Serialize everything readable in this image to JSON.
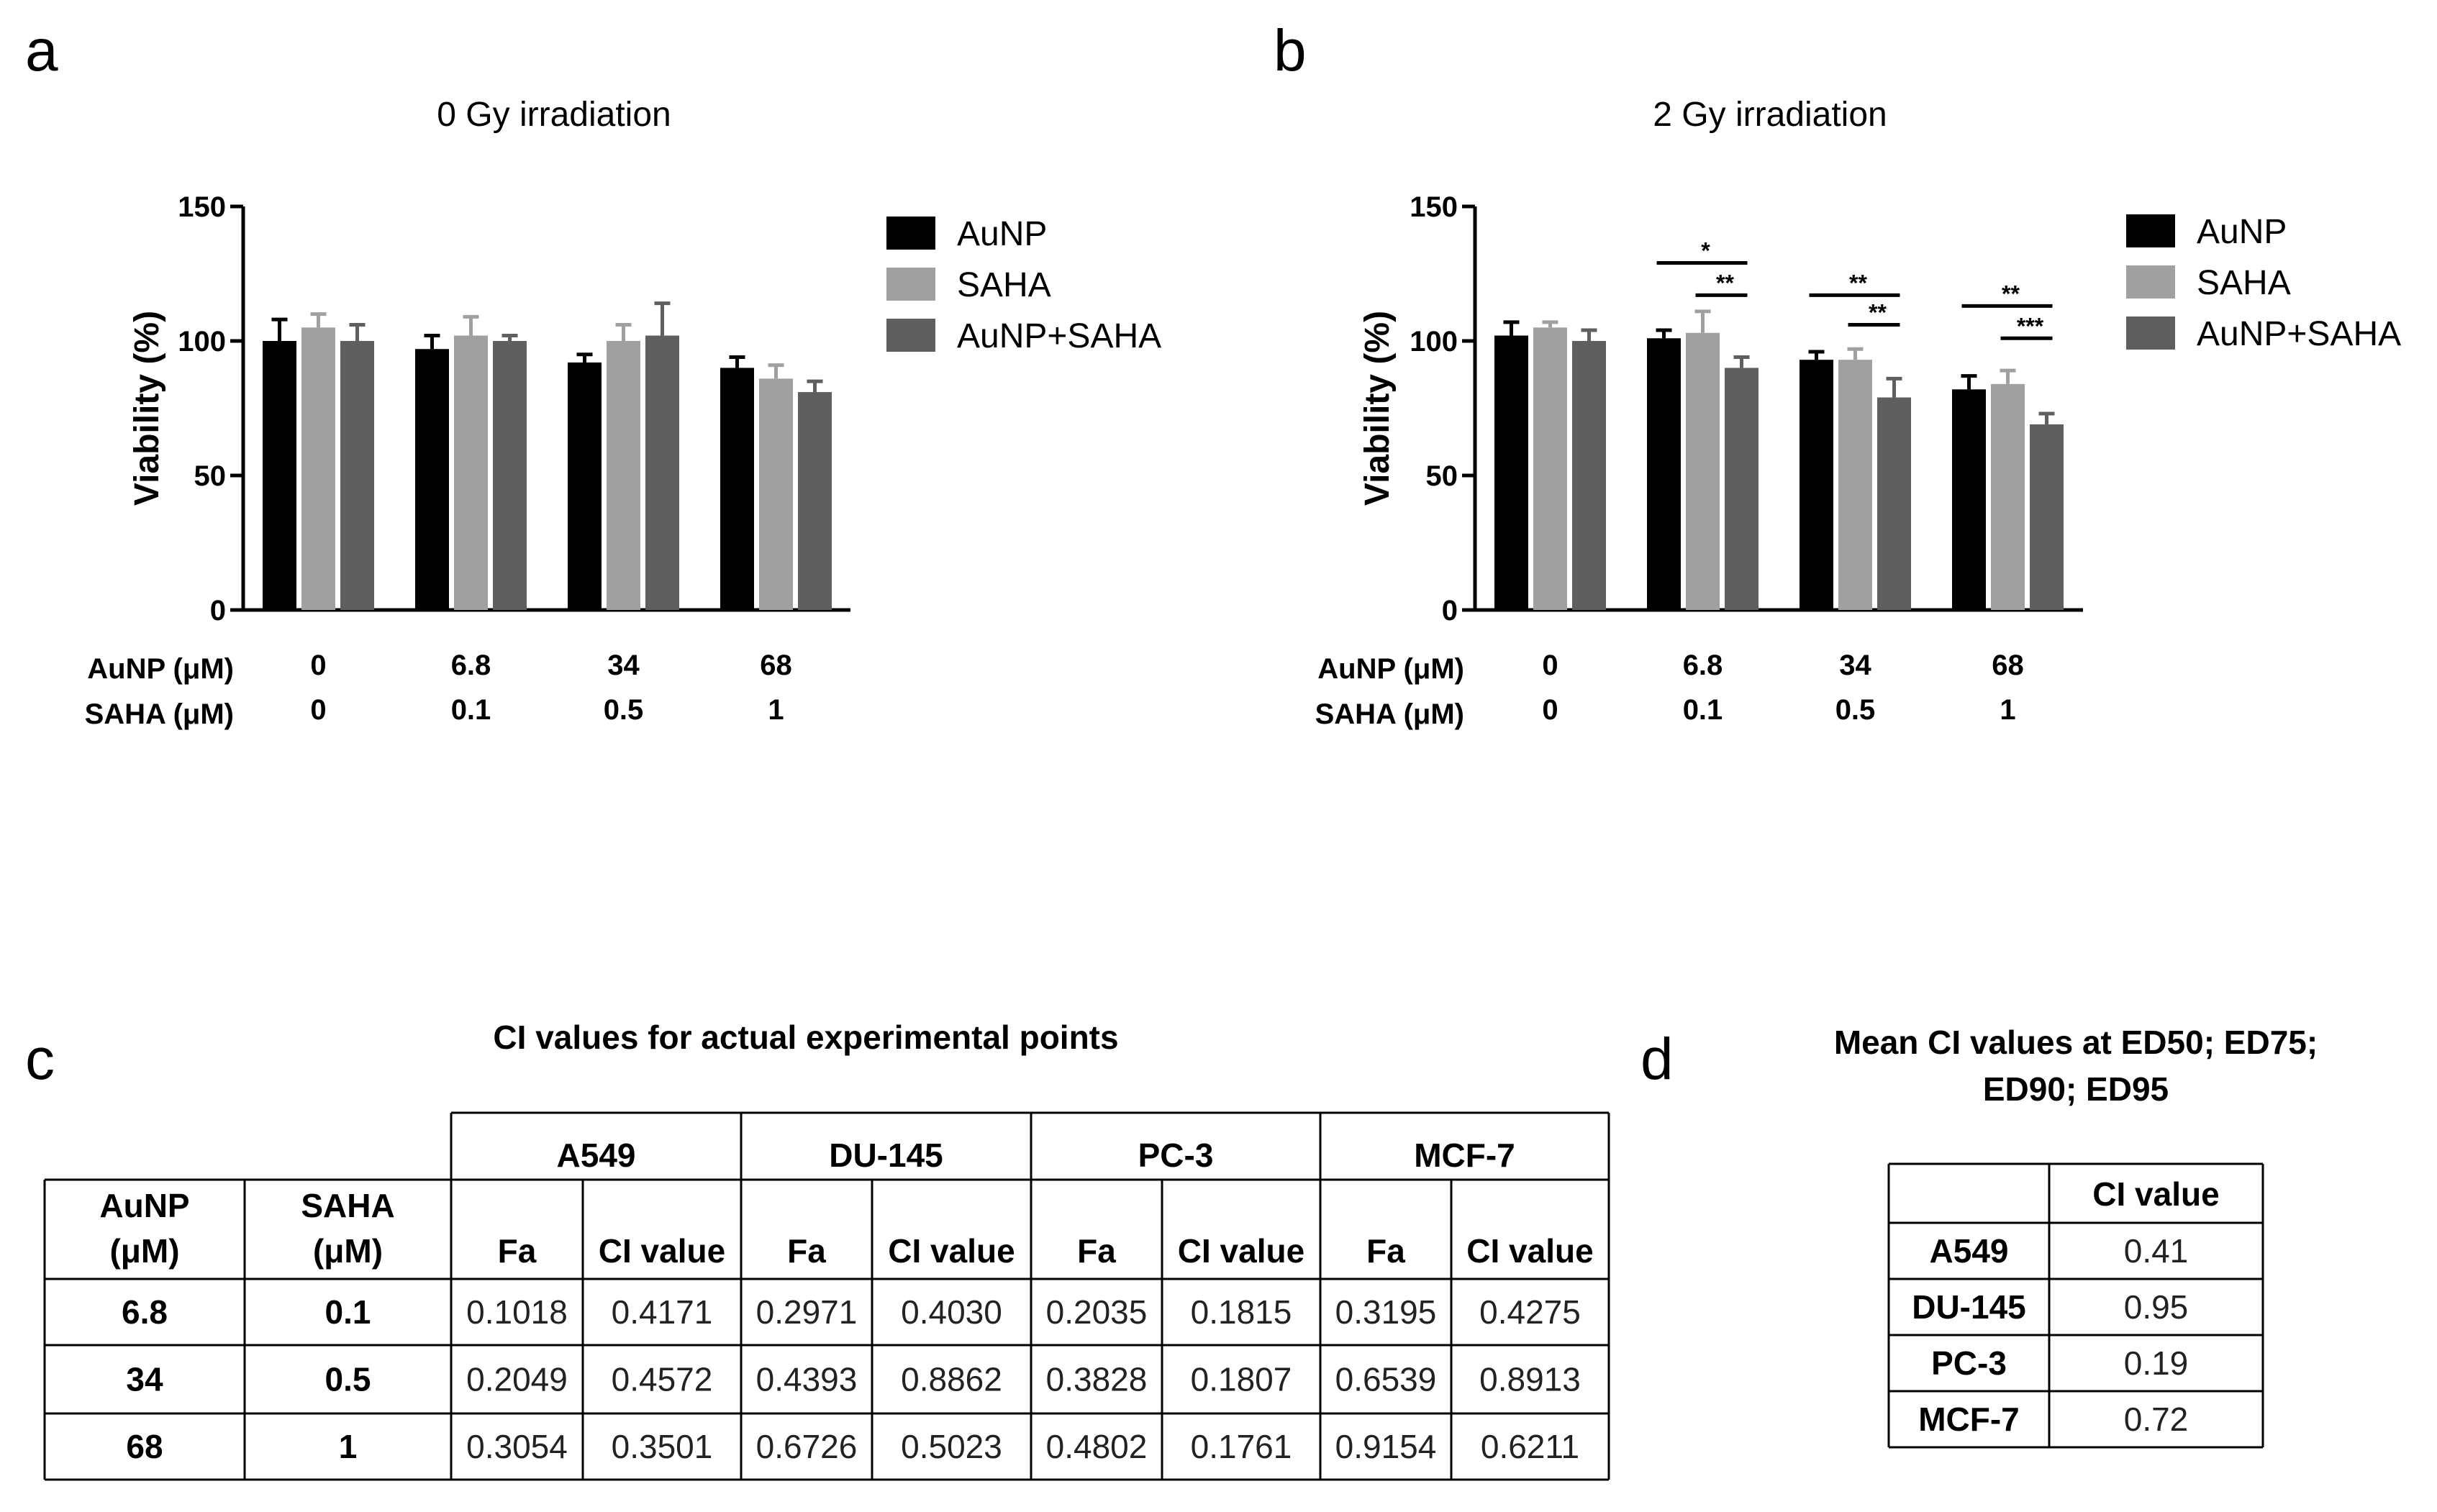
{
  "panel_letters": {
    "a": "a",
    "b": "b",
    "c": "c",
    "d": "d"
  },
  "colors": {
    "AuNP": "#000000",
    "SAHA": "#a0a0a0",
    "AuNP+SAHA": "#5f5f5f"
  },
  "chart_data": [
    {
      "panel": "a",
      "type": "bar",
      "title": "0 Gy irradiation",
      "ylabel": "Viability (%)",
      "ylim": [
        0,
        150
      ],
      "yticks": [
        "150",
        "100",
        "50",
        "0"
      ],
      "row_labels": [
        "AuNP (μM)",
        "SAHA (μM)"
      ],
      "categories_aunp": [
        "0",
        "6.8",
        "34",
        "68"
      ],
      "categories_saha": [
        "0",
        "0.1",
        "0.5",
        "1"
      ],
      "series": [
        {
          "name": "AuNP",
          "values": [
            100,
            97,
            92,
            90
          ],
          "errors": [
            8,
            5,
            3,
            4
          ]
        },
        {
          "name": "SAHA",
          "values": [
            105,
            102,
            100,
            86
          ],
          "errors": [
            5,
            7,
            6,
            5
          ]
        },
        {
          "name": "AuNP+SAHA",
          "values": [
            100,
            100,
            102,
            81
          ],
          "errors": [
            6,
            2,
            12,
            4
          ]
        }
      ],
      "significance": []
    },
    {
      "panel": "b",
      "type": "bar",
      "title": "2 Gy irradiation",
      "ylabel": "Viability (%)",
      "ylim": [
        0,
        150
      ],
      "yticks": [
        "150",
        "100",
        "50",
        "0"
      ],
      "row_labels": [
        "AuNP (μM)",
        "SAHA (μM)"
      ],
      "categories_aunp": [
        "0",
        "6.8",
        "34",
        "68"
      ],
      "categories_saha": [
        "0",
        "0.1",
        "0.5",
        "1"
      ],
      "series": [
        {
          "name": "AuNP",
          "values": [
            102,
            101,
            93,
            82
          ],
          "errors": [
            5,
            3,
            3,
            5
          ]
        },
        {
          "name": "SAHA",
          "values": [
            105,
            103,
            93,
            84
          ],
          "errors": [
            2,
            8,
            4,
            5
          ]
        },
        {
          "name": "AuNP+SAHA",
          "values": [
            100,
            90,
            79,
            69
          ],
          "errors": [
            4,
            4,
            7,
            4
          ]
        }
      ],
      "significance": [
        {
          "group": 1,
          "from": 0,
          "to": 2,
          "label": "*",
          "level": 129
        },
        {
          "group": 1,
          "from": 1,
          "to": 2,
          "label": "**",
          "level": 117
        },
        {
          "group": 2,
          "from": 0,
          "to": 2,
          "label": "**",
          "level": 117
        },
        {
          "group": 2,
          "from": 1,
          "to": 2,
          "label": "**",
          "level": 106
        },
        {
          "group": 3,
          "from": 0,
          "to": 2,
          "label": "**",
          "level": 113
        },
        {
          "group": 3,
          "from": 1,
          "to": 2,
          "label": "***",
          "level": 101
        }
      ]
    }
  ],
  "legend": [
    "AuNP",
    "SAHA",
    "AuNP+SAHA"
  ],
  "table_c": {
    "title": "CI values for actual experimental points",
    "cell_lines": [
      "A549",
      "DU-145",
      "PC-3",
      "MCF-7"
    ],
    "col_aunp": [
      "AuNP",
      "(μM)"
    ],
    "col_saha": [
      "SAHA",
      "(μM)"
    ],
    "sub_fa": "Fa",
    "sub_ci": "CI value",
    "rows": [
      {
        "aunp": "6.8",
        "saha": "0.1",
        "vals": [
          "0.1018",
          "0.4171",
          "0.2971",
          "0.4030",
          "0.2035",
          "0.1815",
          "0.3195",
          "0.4275"
        ]
      },
      {
        "aunp": "34",
        "saha": "0.5",
        "vals": [
          "0.2049",
          "0.4572",
          "0.4393",
          "0.8862",
          "0.3828",
          "0.1807",
          "0.6539",
          "0.8913"
        ]
      },
      {
        "aunp": "68",
        "saha": "1",
        "vals": [
          "0.3054",
          "0.3501",
          "0.6726",
          "0.5023",
          "0.4802",
          "0.1761",
          "0.9154",
          "0.6211"
        ]
      }
    ]
  },
  "table_d": {
    "title_line1": "Mean CI values at ED50; ED75;",
    "title_line2": "ED90; ED95",
    "header": "CI value",
    "rows": [
      {
        "line": "A549",
        "ci": "0.41"
      },
      {
        "line": "DU-145",
        "ci": "0.95"
      },
      {
        "line": "PC-3",
        "ci": "0.19"
      },
      {
        "line": "MCF-7",
        "ci": "0.72"
      }
    ]
  }
}
